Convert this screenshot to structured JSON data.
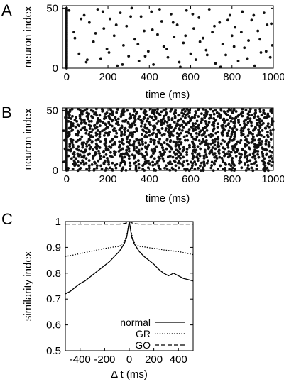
{
  "chart_data": [
    {
      "panel": "A",
      "type": "scatter",
      "xlabel": "time (ms)",
      "ylabel": "neuron index",
      "xlim": [
        -20,
        1000
      ],
      "ylim": [
        0,
        52
      ],
      "xticks": [
        0,
        200,
        400,
        600,
        800,
        1000
      ],
      "yticks": [
        0,
        50
      ],
      "xtick_labels": [
        "0",
        "200",
        "400",
        "600",
        "800",
        "1000"
      ],
      "ytick_labels": [
        "0",
        "50"
      ],
      "grid": false,
      "description_of_points": "sparse spike raster; every neuron fires at t = 0, then isolated spikes scattered uniformly",
      "x": [
        0,
        0,
        0,
        0,
        0,
        0,
        0,
        0,
        0,
        0,
        0,
        0,
        0,
        0,
        0,
        0,
        0,
        0,
        0,
        0,
        0,
        0,
        0,
        0,
        0,
        0,
        0,
        0,
        0,
        0,
        0,
        0,
        0,
        0,
        0,
        0,
        0,
        0,
        0,
        0,
        0,
        0,
        0,
        0,
        0,
        0,
        0,
        0,
        0,
        0,
        0,
        12,
        35,
        60,
        85,
        95,
        110,
        130,
        150,
        165,
        180,
        195,
        210,
        230,
        245,
        260,
        275,
        290,
        300,
        315,
        330,
        350,
        360,
        375,
        395,
        410,
        420,
        440,
        460,
        470,
        490,
        505,
        520,
        535,
        550,
        565,
        580,
        600,
        615,
        625,
        640,
        660,
        675,
        690,
        705,
        720,
        740,
        755,
        770,
        790,
        800,
        815,
        830,
        850,
        860,
        880,
        895,
        910,
        925,
        940,
        955,
        970,
        985,
        995,
        40,
        70,
        100,
        140,
        175,
        205,
        240,
        270,
        310,
        345,
        380,
        415,
        450,
        485,
        515,
        545,
        575,
        610,
        645,
        680,
        715,
        745,
        780,
        810,
        845,
        875,
        905,
        935,
        965,
        990
      ],
      "y": [
        0,
        1,
        2,
        3,
        4,
        5,
        6,
        7,
        8,
        9,
        10,
        11,
        12,
        13,
        14,
        15,
        16,
        17,
        18,
        19,
        20,
        21,
        22,
        23,
        24,
        25,
        26,
        27,
        28,
        29,
        30,
        31,
        32,
        33,
        34,
        35,
        36,
        37,
        38,
        39,
        40,
        41,
        42,
        43,
        44,
        45,
        46,
        47,
        48,
        49,
        50,
        48,
        30,
        12,
        44,
        5,
        38,
        22,
        49,
        8,
        33,
        16,
        41,
        27,
        2,
        46,
        19,
        35,
        10,
        50,
        24,
        6,
        43,
        31,
        14,
        47,
        3,
        28,
        39,
        18,
        9,
        45,
        26,
        36,
        1,
        21,
        48,
        12,
        33,
        7,
        42,
        25,
        15,
        49,
        30,
        4,
        38,
        20,
        11,
        44,
        27,
        34,
        6,
        47,
        17,
        23,
        40,
        2,
        31,
        13,
        46,
        36,
        9,
        19,
        25,
        41,
        7,
        29,
        47,
        13,
        36,
        3,
        43,
        20,
        10,
        32,
        49,
        16,
        38,
        5,
        27,
        45,
        22,
        11,
        35,
        1,
        40,
        18,
        30,
        8,
        44,
        24,
        14,
        37
      ]
    },
    {
      "panel": "B",
      "type": "scatter",
      "xlabel": "time (ms)",
      "ylabel": "neuron index",
      "xlim": [
        -20,
        1000
      ],
      "ylim": [
        0,
        52
      ],
      "xticks": [
        0,
        200,
        400,
        600,
        800,
        1000
      ],
      "yticks": [
        0,
        50
      ],
      "xtick_labels": [
        "0",
        "200",
        "400",
        "600",
        "800",
        "1000"
      ],
      "ytick_labels": [
        "0",
        "50"
      ],
      "grid": false,
      "description_of_points": "dense spike raster; synchronous onset at t = 0 followed by persistent, densely packed firing in nearly every neuron across 0–1000 ms, with a few silent rows and a small number of spikes before t = 0",
      "density_per_neuron": 26,
      "silent_neurons": [
        3,
        9,
        27
      ],
      "pre_onset_spikes": [
        [
          -12,
          7
        ],
        [
          -8,
          18
        ],
        [
          -14,
          33
        ],
        [
          -6,
          44
        ],
        [
          -10,
          25
        ]
      ],
      "onset_time": 0
    },
    {
      "panel": "C",
      "type": "line",
      "xlabel": "Δ t (ms)",
      "ylabel": "similarity index",
      "xlim": [
        -520,
        520
      ],
      "ylim": [
        0.5,
        1.0
      ],
      "xticks": [
        -400,
        -200,
        0,
        200,
        400
      ],
      "yticks": [
        0.5,
        0.6,
        0.7,
        0.8,
        0.9,
        1.0
      ],
      "xtick_labels": [
        "-400",
        "-200",
        "0",
        "200",
        "400"
      ],
      "ytick_labels": [
        "0.5",
        "0.6",
        "0.7",
        "0.8",
        "0.9",
        "1"
      ],
      "grid": false,
      "legend": "bottom-right",
      "x": [
        -520,
        -480,
        -440,
        -400,
        -360,
        -320,
        -280,
        -240,
        -200,
        -160,
        -120,
        -80,
        -40,
        -20,
        0,
        20,
        40,
        80,
        120,
        160,
        200,
        240,
        280,
        320,
        360,
        400,
        440,
        480,
        520
      ],
      "series": [
        {
          "name": "normal",
          "dash": "solid",
          "values": [
            0.72,
            0.73,
            0.745,
            0.76,
            0.77,
            0.785,
            0.8,
            0.815,
            0.83,
            0.845,
            0.865,
            0.885,
            0.915,
            0.94,
            1.0,
            0.94,
            0.915,
            0.885,
            0.865,
            0.85,
            0.835,
            0.815,
            0.8,
            0.79,
            0.8,
            0.79,
            0.78,
            0.775,
            0.77
          ]
        },
        {
          "name": "GR",
          "dash": "dotted",
          "values": [
            0.865,
            0.868,
            0.872,
            0.876,
            0.88,
            0.884,
            0.888,
            0.892,
            0.896,
            0.899,
            0.902,
            0.904,
            0.92,
            0.95,
            1.0,
            0.95,
            0.92,
            0.904,
            0.902,
            0.899,
            0.896,
            0.894,
            0.89,
            0.888,
            0.886,
            0.884,
            0.88,
            0.876,
            0.872
          ]
        },
        {
          "name": "GO",
          "dash": "dashed",
          "values": [
            0.99,
            0.99,
            0.99,
            0.99,
            0.99,
            0.99,
            0.99,
            0.99,
            0.99,
            0.99,
            0.99,
            0.99,
            0.992,
            0.995,
            1.0,
            0.995,
            0.992,
            0.99,
            0.99,
            0.99,
            0.99,
            0.99,
            0.99,
            0.99,
            0.99,
            0.99,
            0.99,
            0.99,
            0.99
          ]
        }
      ]
    }
  ]
}
